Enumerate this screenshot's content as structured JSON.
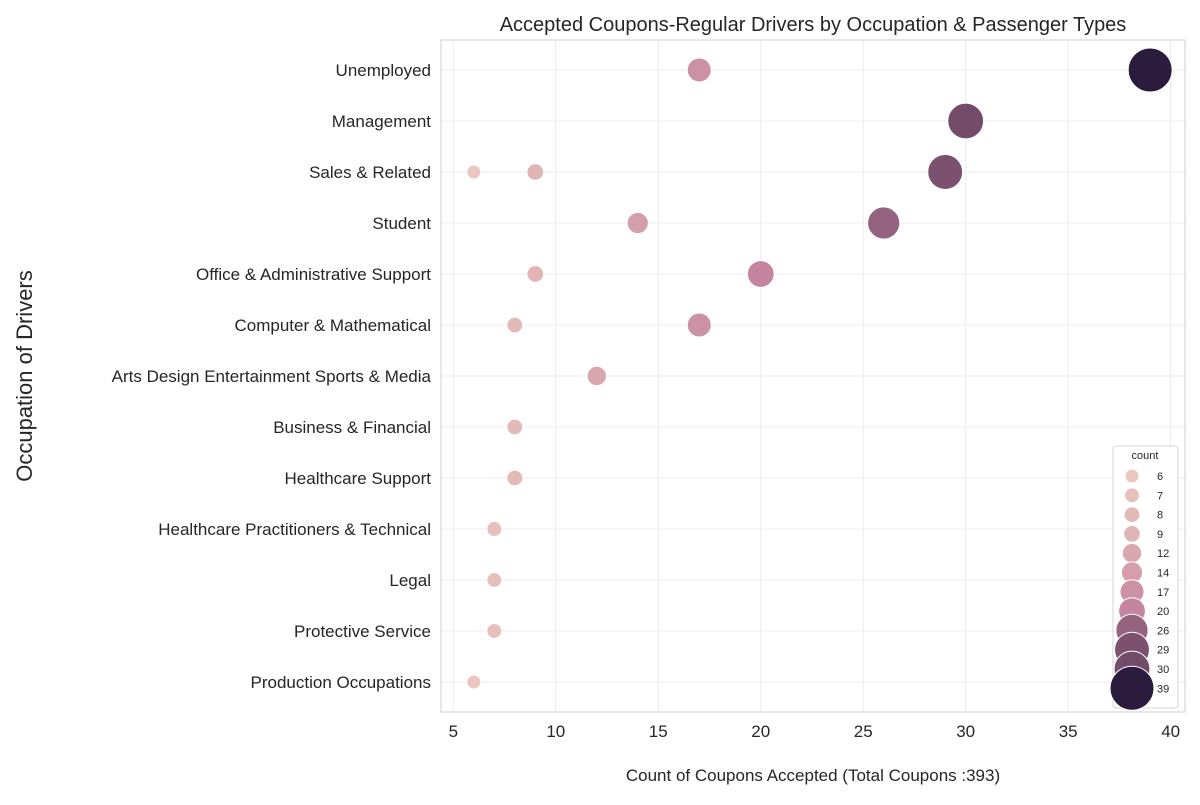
{
  "chart_data": {
    "type": "scatter",
    "title": "Accepted Coupons-Regular Drivers by Occupation & Passenger Types",
    "xlabel": "Count of Coupons Accepted (Total Coupons :393)",
    "ylabel": "Occupation of Drivers",
    "xlim": [
      4.4,
      40.7
    ],
    "xticks": [
      5,
      10,
      15,
      20,
      25,
      30,
      35,
      40
    ],
    "grid": true,
    "legend": {
      "title": "count",
      "placement": "lower-right",
      "entries": [
        6,
        7,
        8,
        9,
        12,
        14,
        17,
        20,
        26,
        29,
        30,
        39
      ]
    },
    "colors": {
      "low": "#ebc7bf",
      "high": "#2b1b3c"
    },
    "categories": [
      "Unemployed",
      "Management",
      "Sales & Related",
      "Student",
      "Office & Administrative Support",
      "Computer & Mathematical",
      "Arts Design Entertainment Sports & Media",
      "Business & Financial",
      "Healthcare Support",
      "Healthcare Practitioners & Technical",
      "Legal",
      "Protective Service",
      "Production Occupations"
    ],
    "points": [
      {
        "category": "Unemployed",
        "x": 17
      },
      {
        "category": "Unemployed",
        "x": 39
      },
      {
        "category": "Management",
        "x": 30
      },
      {
        "category": "Sales & Related",
        "x": 6
      },
      {
        "category": "Sales & Related",
        "x": 9
      },
      {
        "category": "Sales & Related",
        "x": 29
      },
      {
        "category": "Student",
        "x": 14
      },
      {
        "category": "Student",
        "x": 26
      },
      {
        "category": "Office & Administrative Support",
        "x": 9
      },
      {
        "category": "Office & Administrative Support",
        "x": 20
      },
      {
        "category": "Computer & Mathematical",
        "x": 8
      },
      {
        "category": "Computer & Mathematical",
        "x": 17
      },
      {
        "category": "Arts Design Entertainment Sports & Media",
        "x": 12
      },
      {
        "category": "Business & Financial",
        "x": 8
      },
      {
        "category": "Healthcare Support",
        "x": 8
      },
      {
        "category": "Healthcare Practitioners & Technical",
        "x": 7
      },
      {
        "category": "Legal",
        "x": 7
      },
      {
        "category": "Protective Service",
        "x": 7
      },
      {
        "category": "Production Occupations",
        "x": 6
      }
    ]
  }
}
